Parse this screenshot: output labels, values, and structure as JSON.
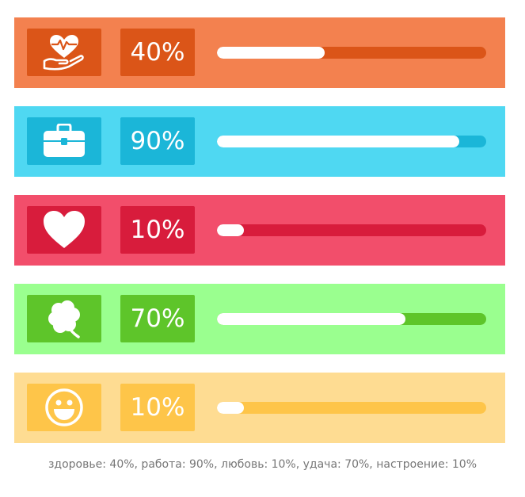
{
  "rows": [
    {
      "id": "health",
      "icon": "heart-in-hand-icon",
      "label": "40%",
      "value": 40,
      "bg": "#f3814f",
      "accent": "#db5518"
    },
    {
      "id": "work",
      "icon": "briefcase-icon",
      "label": "90%",
      "value": 90,
      "bg": "#4fd8f2",
      "accent": "#1bb6d8"
    },
    {
      "id": "love",
      "icon": "heart-icon",
      "label": "10%",
      "value": 10,
      "bg": "#f24e6b",
      "accent": "#d81c3c"
    },
    {
      "id": "luck",
      "icon": "clover-icon",
      "label": "70%",
      "value": 70,
      "bg": "#9aff8f",
      "accent": "#5ec52a"
    },
    {
      "id": "mood",
      "icon": "smiley-icon",
      "label": "10%",
      "value": 10,
      "bg": "#fedc92",
      "accent": "#fec549"
    }
  ],
  "caption": "здоровье: 40%, работа: 90%, любовь: 10%, удача: 70%, настроение: 10%"
}
